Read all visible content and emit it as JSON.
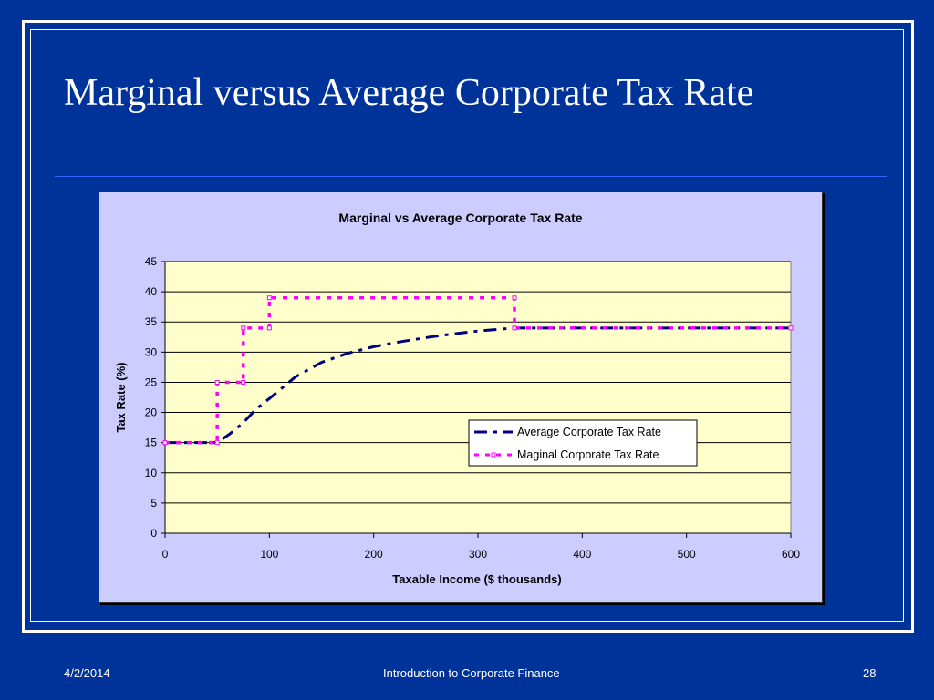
{
  "slide": {
    "title": "Marginal versus Average Corporate Tax Rate"
  },
  "footer": {
    "date": "4/2/2014",
    "center": "Introduction to Corporate Finance",
    "page": "28"
  },
  "chart_data": {
    "type": "line",
    "title": "Marginal vs Average Corporate Tax Rate",
    "xlabel": "Taxable Income ($ thousands)",
    "ylabel": "Tax Rate (%)",
    "xlim": [
      0,
      600
    ],
    "ylim": [
      0,
      45
    ],
    "xticks": [
      0,
      100,
      200,
      300,
      400,
      500,
      600
    ],
    "yticks": [
      0,
      5,
      10,
      15,
      20,
      25,
      30,
      35,
      40,
      45
    ],
    "grid": "horizontal",
    "plot_background": "#ffffcc",
    "chart_background": "#ccccff",
    "legend_position": "right",
    "series": [
      {
        "name": "Average Corporate Tax Rate",
        "color": "#000080",
        "style": "dashed",
        "x": [
          0,
          25,
          50,
          62.5,
          75,
          87.5,
          100,
          125,
          150,
          175,
          200,
          225,
          250,
          275,
          300,
          335,
          400,
          500,
          600
        ],
        "y": [
          15,
          15,
          15,
          16.5,
          18.3,
          20.6,
          22.3,
          25.9,
          28.3,
          29.8,
          30.9,
          31.7,
          32.4,
          33.0,
          33.5,
          34.0,
          34.0,
          34.0,
          34.0
        ]
      },
      {
        "name": "Maginal Corporate Tax Rate",
        "color": "#ff00ff",
        "style": "dotted",
        "x": [
          0,
          50,
          50,
          75,
          75,
          100,
          100,
          335,
          335,
          600
        ],
        "y": [
          15,
          15,
          25,
          25,
          34,
          34,
          39,
          39,
          34,
          34
        ]
      }
    ]
  }
}
